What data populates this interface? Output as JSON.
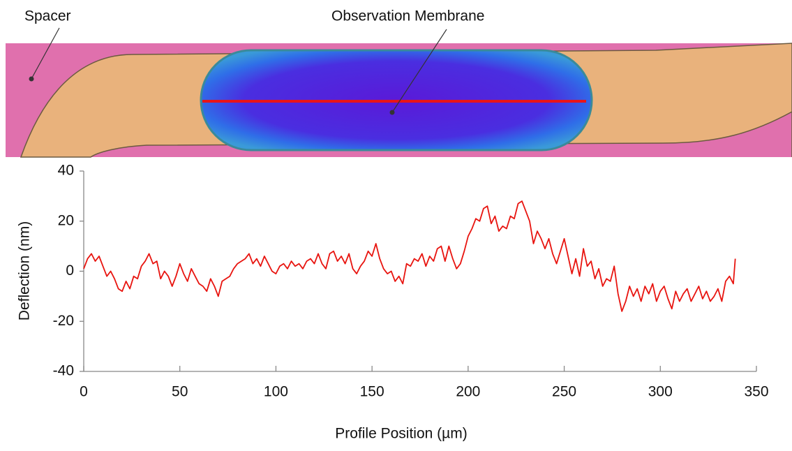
{
  "chart_data": {
    "type": "line",
    "annotations": [
      "Spacer",
      "Observation Membrane"
    ],
    "xlabel": "Profile Position (µm)",
    "ylabel": "Deflection (nm)",
    "xlim": [
      0,
      350
    ],
    "xticks": [
      0,
      50,
      100,
      150,
      200,
      250,
      300,
      350
    ],
    "ylim": [
      -40,
      40
    ],
    "yticks": [
      -40,
      -20,
      0,
      20,
      40
    ],
    "grid": false,
    "color": "#e8140f",
    "x": [
      0,
      2,
      4,
      6,
      8,
      10,
      12,
      14,
      16,
      18,
      20,
      22,
      24,
      26,
      28,
      30,
      32,
      34,
      36,
      38,
      40,
      42,
      44,
      46,
      48,
      50,
      52,
      54,
      56,
      58,
      60,
      62,
      64,
      66,
      68,
      70,
      72,
      74,
      76,
      78,
      80,
      82,
      84,
      86,
      88,
      90,
      92,
      94,
      96,
      98,
      100,
      102,
      104,
      106,
      108,
      110,
      112,
      114,
      116,
      118,
      120,
      122,
      124,
      126,
      128,
      130,
      132,
      134,
      136,
      138,
      140,
      142,
      144,
      146,
      148,
      150,
      152,
      154,
      156,
      158,
      160,
      162,
      164,
      166,
      168,
      170,
      172,
      174,
      176,
      178,
      180,
      182,
      184,
      186,
      188,
      190,
      192,
      194,
      196,
      198,
      200,
      202,
      204,
      206,
      208,
      210,
      212,
      214,
      216,
      218,
      220,
      222,
      224,
      226,
      228,
      230,
      232,
      234,
      236,
      238,
      240,
      242,
      244,
      246,
      248,
      250,
      252,
      254,
      256,
      258,
      260,
      262,
      264,
      266,
      268,
      270,
      272,
      274,
      276,
      278,
      280,
      282,
      284,
      286,
      288,
      290,
      292,
      294,
      296,
      298,
      300,
      302,
      304,
      306,
      308,
      310,
      312,
      314,
      316,
      318,
      320,
      322,
      324,
      326,
      328,
      330,
      332,
      334,
      336,
      338,
      339
    ],
    "values": [
      1,
      5,
      7,
      4,
      6,
      2,
      -2,
      0,
      -3,
      -7,
      -8,
      -4,
      -7,
      -2,
      -3,
      2,
      4,
      7,
      3,
      4,
      -3,
      0,
      -2,
      -6,
      -2,
      3,
      -1,
      -4,
      1,
      -2,
      -5,
      -6,
      -8,
      -3,
      -6,
      -10,
      -4,
      -3,
      -2,
      1,
      3,
      4,
      5,
      7,
      3,
      5,
      2,
      6,
      3,
      0,
      -1,
      2,
      3,
      1,
      4,
      2,
      3,
      1,
      4,
      5,
      3,
      7,
      3,
      1,
      7,
      8,
      4,
      6,
      3,
      7,
      1,
      -1,
      2,
      4,
      8,
      6,
      11,
      5,
      1,
      -1,
      0,
      -4,
      -2,
      -5,
      3,
      2,
      5,
      4,
      7,
      2,
      6,
      4,
      9,
      10,
      4,
      10,
      5,
      1,
      3,
      8,
      14,
      17,
      21,
      20,
      25,
      26,
      19,
      22,
      16,
      18,
      17,
      22,
      21,
      27,
      28,
      24,
      20,
      11,
      16,
      13,
      9,
      13,
      7,
      3,
      8,
      13,
      6,
      -1,
      5,
      -2,
      9,
      2,
      4,
      -3,
      1,
      -6,
      -3,
      -4,
      2,
      -9,
      -16,
      -12,
      -6,
      -10,
      -7,
      -12,
      -6,
      -9,
      -5,
      -12,
      -8,
      -6,
      -11,
      -15,
      -8,
      -12,
      -9,
      -7,
      -12,
      -9,
      -6,
      -11,
      -8,
      -12,
      -10,
      -7,
      -12,
      -4,
      -2,
      -5,
      5
    ]
  }
}
